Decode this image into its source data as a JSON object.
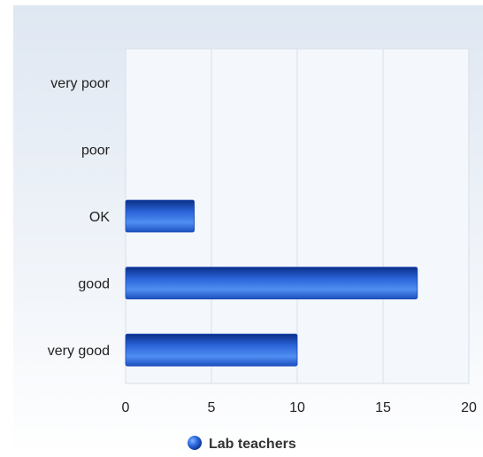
{
  "chart_data": {
    "type": "bar",
    "orientation": "horizontal",
    "categories": [
      "very poor",
      "poor",
      "OK",
      "good",
      "very good"
    ],
    "series": [
      {
        "name": "Lab teachers",
        "values": [
          0,
          0,
          4,
          17,
          10
        ],
        "color": "#2f6fe0"
      }
    ],
    "x_ticks": [
      "0",
      "5",
      "10",
      "15",
      "20"
    ],
    "xlim": [
      0,
      20
    ],
    "grid": true,
    "legend_position": "bottom"
  }
}
